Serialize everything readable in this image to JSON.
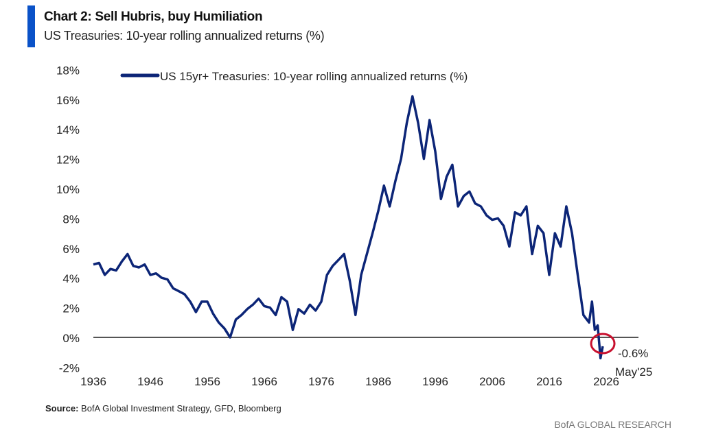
{
  "header": {
    "title": "Chart 2: Sell Hubris, buy Humiliation",
    "subtitle": "US Treasuries: 10-year rolling annualized returns (%)"
  },
  "footer": {
    "source_label": "Source:",
    "source_text": " BofA Global Investment Strategy, GFD, Bloomberg",
    "brand": "BofA GLOBAL RESEARCH"
  },
  "colors": {
    "series": "#0c2577",
    "annotation": "#c8102e",
    "accent": "#0a52c8",
    "zero_line": "#555555"
  },
  "chart_data": {
    "type": "line",
    "title": "Chart 2: Sell Hubris, buy Humiliation",
    "xlabel": "",
    "ylabel": "",
    "xlim": [
      1936,
      2031
    ],
    "ylim": [
      -2,
      18
    ],
    "x_ticks": [
      1936,
      1946,
      1956,
      1966,
      1976,
      1986,
      1996,
      2006,
      2016,
      2026
    ],
    "y_ticks": [
      -2,
      0,
      2,
      4,
      6,
      8,
      10,
      12,
      14,
      16,
      18
    ],
    "y_tick_labels": [
      "-2%",
      "0%",
      "2%",
      "4%",
      "6%",
      "8%",
      "10%",
      "12%",
      "14%",
      "16%",
      "18%"
    ],
    "legend": {
      "position": "top",
      "entries": [
        "US 15yr+ Treasuries: 10-year rolling annualized returns (%)"
      ]
    },
    "annotation": {
      "x": 2025.4,
      "y": -0.6,
      "label": "-0.6%",
      "sublabel": "May'25"
    },
    "series": [
      {
        "name": "US 15yr+ Treasuries: 10-year rolling annualized returns (%)",
        "x": [
          1936,
          1937,
          1938,
          1939,
          1940,
          1941,
          1942,
          1943,
          1944,
          1945,
          1946,
          1947,
          1948,
          1949,
          1950,
          1951,
          1952,
          1953,
          1954,
          1955,
          1956,
          1957,
          1958,
          1959,
          1960,
          1961,
          1962,
          1963,
          1964,
          1965,
          1966,
          1967,
          1968,
          1969,
          1970,
          1971,
          1972,
          1973,
          1974,
          1975,
          1976,
          1977,
          1978,
          1979,
          1980,
          1981,
          1982,
          1983,
          1984,
          1985,
          1986,
          1987,
          1988,
          1989,
          1990,
          1991,
          1992,
          1993,
          1994,
          1995,
          1996,
          1997,
          1998,
          1999,
          2000,
          2001,
          2002,
          2003,
          2004,
          2005,
          2006,
          2007,
          2008,
          2009,
          2010,
          2011,
          2012,
          2013,
          2014,
          2015,
          2016,
          2017,
          2018,
          2019,
          2020,
          2021,
          2022,
          2023,
          2023.5,
          2024,
          2024.5,
          2025,
          2025.4
        ],
        "y": [
          4.9,
          5.0,
          4.2,
          4.6,
          4.5,
          5.1,
          5.6,
          4.8,
          4.7,
          4.9,
          4.2,
          4.3,
          4.0,
          3.9,
          3.3,
          3.1,
          2.9,
          2.4,
          1.7,
          2.4,
          2.4,
          1.6,
          1.0,
          0.6,
          0.0,
          1.2,
          1.5,
          1.9,
          2.2,
          2.6,
          2.1,
          2.0,
          1.5,
          2.7,
          2.4,
          0.5,
          1.9,
          1.6,
          2.2,
          1.8,
          2.4,
          4.2,
          4.8,
          5.2,
          5.6,
          3.8,
          1.5,
          4.2,
          5.6,
          7.0,
          8.5,
          10.2,
          8.8,
          10.5,
          12.0,
          14.4,
          16.2,
          14.4,
          12.0,
          14.6,
          12.5,
          9.3,
          10.8,
          11.6,
          8.8,
          9.5,
          9.8,
          9.0,
          8.8,
          8.2,
          7.9,
          8.0,
          7.5,
          6.1,
          8.4,
          8.2,
          8.8,
          5.6,
          7.5,
          7.0,
          4.2,
          7.0,
          6.1,
          8.8,
          7.0,
          4.2,
          1.5,
          1.0,
          2.4,
          0.5,
          0.8,
          -1.4,
          -0.6
        ]
      }
    ]
  }
}
